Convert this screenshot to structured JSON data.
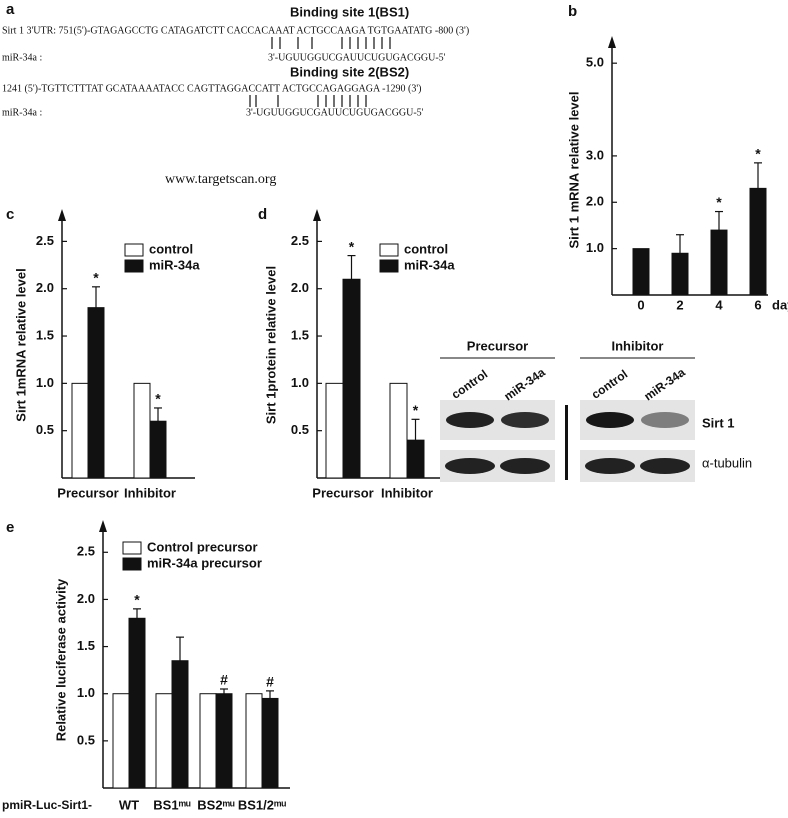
{
  "panel_a": {
    "label": "a",
    "site1_title": "Binding site 1(BS1)",
    "site1_utr": "Sirt 1 3'UTR: 751(5')-GTAGAGCCTG CATAGATCTT  CACCACAAAT ACTGCCAAGA TGTGAATATG  -800 (3')",
    "site1_mirna_name": "miR-34a :",
    "site1_mirna": "3'-UGUUGGUCGAUUCUGUGACGGU-5'",
    "site2_title": "Binding site 2(BS2)",
    "site2_utr": "1241 (5')-TGTTCTTTAT GCATAAAATACC  CAGTTAGGACCATT ACTGCCAGAGGAGA -1290 (3')",
    "site2_mirna_name": "miR-34a :",
    "site2_mirna": "3'-UGUUGGUCGAUUCUGUGACGGU-5'",
    "source": "www.targetscan.org"
  },
  "chart_data": [
    {
      "type": "bar",
      "panel_label": "b",
      "y_label": "Sirt 1 mRNA relative level",
      "x_label": "days",
      "categories": [
        "0",
        "2",
        "4",
        "6"
      ],
      "series": [
        {
          "name": null,
          "color": "#111111",
          "values": [
            1.0,
            0.9,
            1.4,
            2.3
          ],
          "errors": [
            null,
            0.4,
            0.4,
            0.55
          ],
          "significance": [
            null,
            null,
            "*",
            "*"
          ]
        }
      ],
      "ylim": [
        0,
        5.5
      ],
      "yticks": [
        {
          "value": 1,
          "label": "1.0"
        },
        {
          "value": 2,
          "label": "2.0"
        },
        {
          "value": 3,
          "label": "3.0"
        },
        {
          "value": 5,
          "label": "5.0"
        }
      ]
    },
    {
      "type": "bar",
      "panel_label": "c",
      "y_label": "Sirt 1mRNA relative level",
      "categories": [
        "Precursor",
        "Inhibitor"
      ],
      "series": [
        {
          "name": "control",
          "color": "#ffffff",
          "values": [
            1.0,
            1.0
          ],
          "errors": [
            null,
            null
          ],
          "significance": [
            null,
            null
          ]
        },
        {
          "name": "miR-34a",
          "color": "#111111",
          "values": [
            1.8,
            0.6
          ],
          "errors": [
            0.22,
            0.14
          ],
          "significance": [
            "*",
            "*"
          ]
        }
      ],
      "ylim": [
        0,
        2.8
      ],
      "yticks": [
        0.5,
        {
          "value": 1,
          "label": "1.0"
        },
        1.5,
        {
          "value": 2,
          "label": "2.0"
        },
        2.5
      ]
    },
    {
      "type": "bar",
      "panel_label": "d",
      "y_label": "Sirt 1protein relative level",
      "categories": [
        "Precursor",
        "Inhibitor"
      ],
      "series": [
        {
          "name": "control",
          "color": "#ffffff",
          "values": [
            1.0,
            1.0
          ],
          "errors": [
            null,
            null
          ],
          "significance": [
            null,
            null
          ]
        },
        {
          "name": "miR-34a",
          "color": "#111111",
          "values": [
            2.1,
            0.4
          ],
          "errors": [
            0.25,
            0.22
          ],
          "significance": [
            "*",
            "*"
          ]
        }
      ],
      "ylim": [
        0,
        2.8
      ],
      "yticks": [
        0.5,
        {
          "value": 1,
          "label": "1.0"
        },
        1.5,
        {
          "value": 2,
          "label": "2.0"
        },
        2.5
      ],
      "blot": {
        "groups": [
          "Precursor",
          "Inhibitor"
        ],
        "lanes": [
          "control",
          "miR-34a",
          "control",
          "miR-34a"
        ],
        "rows": [
          "Sirt 1",
          "α-tubulin"
        ]
      }
    },
    {
      "type": "bar",
      "panel_label": "e",
      "y_label": "Relative luciferase activity",
      "x_prefix": "pmiR-Luc-Sirt1-",
      "categories": [
        "WT",
        "BS1ᵐᵘ",
        "BS2ᵐᵘ",
        "BS1/2ᵐᵘ"
      ],
      "series": [
        {
          "name": "Control precursor",
          "color": "#ffffff",
          "values": [
            1.0,
            1.0,
            1.0,
            1.0
          ],
          "errors": [
            null,
            null,
            null,
            null
          ],
          "significance": [
            null,
            null,
            null,
            null
          ]
        },
        {
          "name": "miR-34a precursor",
          "color": "#111111",
          "values": [
            1.8,
            1.35,
            1.0,
            0.95
          ],
          "errors": [
            0.1,
            0.25,
            0.05,
            0.08
          ],
          "significance": [
            "*",
            null,
            "#",
            "#"
          ]
        }
      ],
      "ylim": [
        0,
        2.8
      ],
      "yticks": [
        0.5,
        {
          "value": 1,
          "label": "1.0"
        },
        1.5,
        {
          "value": 2,
          "label": "2.0"
        },
        2.5
      ]
    }
  ]
}
